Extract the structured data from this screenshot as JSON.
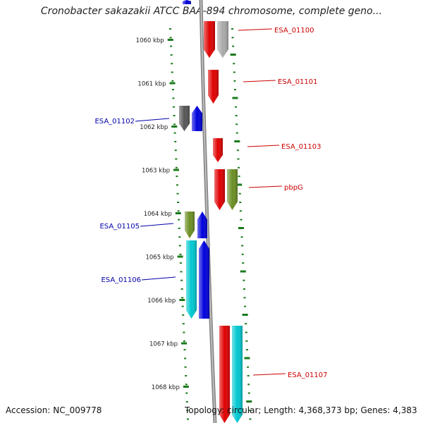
{
  "title": "Cronobacter sakazakii ATCC BAA-894 chromosome, complete geno...",
  "accession": "Accession: NC_009778",
  "topology": "Topology: circular; Length: 4,368,373 bp; Genes: 4,383",
  "ruler_labels": [
    {
      "text": "1060 kbp",
      "kbp": 1060
    },
    {
      "text": "1061 kbp",
      "kbp": 1061
    },
    {
      "text": "1062 kbp",
      "kbp": 1062
    },
    {
      "text": "1063 kbp",
      "kbp": 1063
    },
    {
      "text": "1064 kbp",
      "kbp": 1064
    },
    {
      "text": "1065 kbp",
      "kbp": 1065
    },
    {
      "text": "1066 kbp",
      "kbp": 1066
    },
    {
      "text": "1067 kbp",
      "kbp": 1067
    },
    {
      "text": "1068 kbp",
      "kbp": 1068
    }
  ],
  "colors": {
    "red": "#e00000",
    "gray": "#a9a9a9",
    "darkgray": "#555555",
    "blue": "#0000dd",
    "olive": "#6b8e23",
    "cyan": "#00c8d0",
    "label_red": "#cc0000",
    "label_blue": "#0000aa",
    "tick": "#1a7a1a",
    "backbone": "#888888"
  },
  "gene_labels": [
    {
      "text": "ESA_01100",
      "side": "right"
    },
    {
      "text": "ESA_01101",
      "side": "right"
    },
    {
      "text": "ESA_01102",
      "side": "left"
    },
    {
      "text": "ESA_01103",
      "side": "right"
    },
    {
      "text": "pbpG",
      "side": "right"
    },
    {
      "text": "ESA_01105",
      "side": "left"
    },
    {
      "text": "ESA_01106",
      "side": "left"
    },
    {
      "text": "ESA_01107",
      "side": "right"
    }
  ]
}
